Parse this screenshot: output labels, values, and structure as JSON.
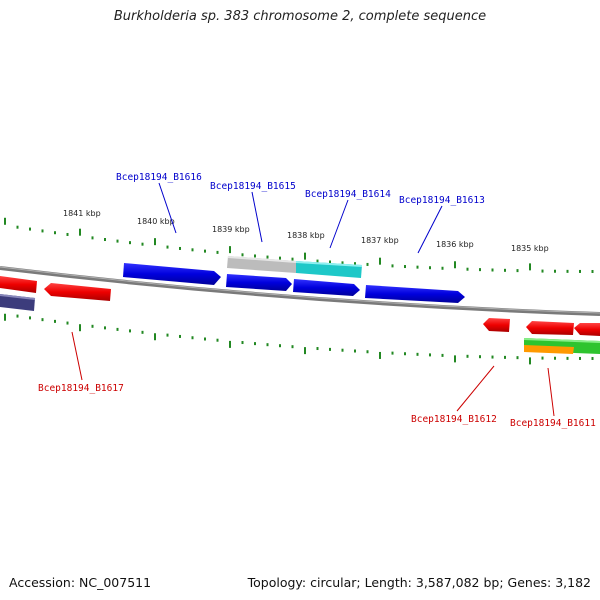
{
  "title": "Burkholderia sp. 383 chromosome 2, complete sequence",
  "footer": {
    "accession": "Accession: NC_007511",
    "topology": "Topology: circular; Length: 3,587,082 bp; Genes: 3,182"
  },
  "scale_labels": [
    "1841 kbp",
    "1840 kbp",
    "1839 kbp",
    "1838 kbp",
    "1837 kbp",
    "1836 kbp",
    "1835 kbp"
  ],
  "genes_forward": [
    "Bcep18194_B1616",
    "Bcep18194_B1615",
    "Bcep18194_B1614",
    "Bcep18194_B1613"
  ],
  "genes_reverse": [
    "Bcep18194_B1617",
    "Bcep18194_B1612",
    "Bcep18194_B1611"
  ],
  "colors": {
    "forward": "#0000dd",
    "reverse": "#ee0000",
    "ticks": "#228822",
    "backbone": "#808080",
    "gray_feature": "#c0c0c0",
    "cyan_feature": "#22cccc",
    "dark_feature": "#404080",
    "green_feature": "#33cc33",
    "orange_feature": "#ff9900"
  }
}
